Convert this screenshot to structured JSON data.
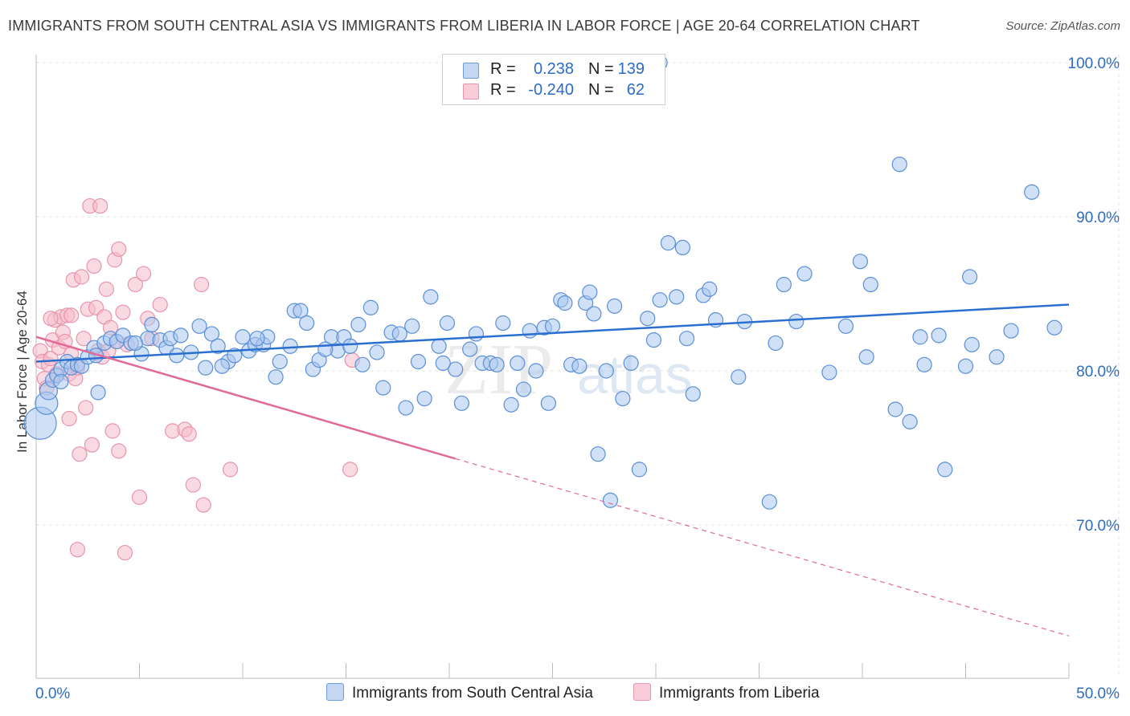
{
  "title": "IMMIGRANTS FROM SOUTH CENTRAL ASIA VS IMMIGRANTS FROM LIBERIA IN LABOR FORCE | AGE 20-64 CORRELATION CHART",
  "source": "Source: ZipAtlas.com",
  "watermark": "ZIPatlas",
  "legend": {
    "rows": [
      {
        "r_label": "R =",
        "r_value": "0.238",
        "n_label": "N =",
        "n_value": "139",
        "color": "#a9c7ef"
      },
      {
        "r_label": "R =",
        "r_value": "-0.240",
        "n_label": "N =",
        "n_value": "62",
        "color": "#f6bccb"
      }
    ]
  },
  "bottom_legend": {
    "blue": "Immigrants from South Central Asia",
    "pink": "Immigrants from Liberia"
  },
  "colors": {
    "blue_fill": "#a9c7ef",
    "blue_stroke": "#5b8fd6",
    "blue_line": "#2a6fcf",
    "pink_fill": "#f6bccb",
    "pink_stroke": "#e695ad",
    "pink_line": "#e06a98",
    "tick_label": "#2b6cc4"
  },
  "chart_data": {
    "type": "scatter",
    "title": "IMMIGRANTS FROM SOUTH CENTRAL ASIA VS IMMIGRANTS FROM LIBERIA IN LABOR FORCE | AGE 20-64 CORRELATION CHART",
    "xlabel": "",
    "ylabel": "In Labor Force | Age 20-64",
    "xlim": [
      0,
      50
    ],
    "ylim": [
      61.0,
      102.0
    ],
    "x_tick_labels": [
      "0.0%",
      "50.0%"
    ],
    "y_ticks": [
      70,
      80,
      90,
      100
    ],
    "y_tick_labels": [
      "70.0%",
      "80.0%",
      "90.0%",
      "100.0%"
    ],
    "grid": true,
    "legend_position": "top-center",
    "series": [
      {
        "name": "Immigrants from South Central Asia",
        "R": 0.238,
        "N": 139,
        "trend": {
          "x": [
            0,
            50
          ],
          "y": [
            80.6,
            84.3
          ],
          "style": "solid"
        },
        "points": [
          [
            0.2,
            76.6
          ],
          [
            0.5,
            77.9
          ],
          [
            0.6,
            78.7
          ],
          [
            0.8,
            79.4
          ],
          [
            1.0,
            79.7
          ],
          [
            1.2,
            80.1
          ],
          [
            1.5,
            80.6
          ],
          [
            1.7,
            80.2
          ],
          [
            2.0,
            80.4
          ],
          [
            2.2,
            80.3
          ],
          [
            2.5,
            80.9
          ],
          [
            2.8,
            81.5
          ],
          [
            3.0,
            78.6
          ],
          [
            3.3,
            81.8
          ],
          [
            3.6,
            82.1
          ],
          [
            3.9,
            81.9
          ],
          [
            4.2,
            82.3
          ],
          [
            4.6,
            81.8
          ],
          [
            5.1,
            81.1
          ],
          [
            5.4,
            82.1
          ],
          [
            5.6,
            83.0
          ],
          [
            6.0,
            82.0
          ],
          [
            6.3,
            81.5
          ],
          [
            6.5,
            82.1
          ],
          [
            7.0,
            82.3
          ],
          [
            7.5,
            81.2
          ],
          [
            7.9,
            82.9
          ],
          [
            8.2,
            80.2
          ],
          [
            8.5,
            82.4
          ],
          [
            8.8,
            81.6
          ],
          [
            9.3,
            80.6
          ],
          [
            9.6,
            81.0
          ],
          [
            10.0,
            82.2
          ],
          [
            10.3,
            81.3
          ],
          [
            10.6,
            81.7
          ],
          [
            11.0,
            81.7
          ],
          [
            11.2,
            82.2
          ],
          [
            11.6,
            79.6
          ],
          [
            11.8,
            80.6
          ],
          [
            12.3,
            81.6
          ],
          [
            12.5,
            83.9
          ],
          [
            12.8,
            83.9
          ],
          [
            13.1,
            83.1
          ],
          [
            13.4,
            80.1
          ],
          [
            13.7,
            80.7
          ],
          [
            14.3,
            82.2
          ],
          [
            14.6,
            81.3
          ],
          [
            14.9,
            82.2
          ],
          [
            15.2,
            81.6
          ],
          [
            15.6,
            83.0
          ],
          [
            15.8,
            80.4
          ],
          [
            16.2,
            84.1
          ],
          [
            16.5,
            81.2
          ],
          [
            16.8,
            78.9
          ],
          [
            17.2,
            82.5
          ],
          [
            17.6,
            82.4
          ],
          [
            17.9,
            77.6
          ],
          [
            18.2,
            82.9
          ],
          [
            18.5,
            80.6
          ],
          [
            18.8,
            78.2
          ],
          [
            19.1,
            84.8
          ],
          [
            19.5,
            81.6
          ],
          [
            19.9,
            83.1
          ],
          [
            20.3,
            80.1
          ],
          [
            20.6,
            77.9
          ],
          [
            21.0,
            81.4
          ],
          [
            21.3,
            82.4
          ],
          [
            21.6,
            80.5
          ],
          [
            22.0,
            80.5
          ],
          [
            22.3,
            80.4
          ],
          [
            22.6,
            83.1
          ],
          [
            23.0,
            77.8
          ],
          [
            23.3,
            80.5
          ],
          [
            23.6,
            78.8
          ],
          [
            23.9,
            82.6
          ],
          [
            24.2,
            80.0
          ],
          [
            24.6,
            82.8
          ],
          [
            24.8,
            77.9
          ],
          [
            25.0,
            82.9
          ],
          [
            25.4,
            84.6
          ],
          [
            25.6,
            84.4
          ],
          [
            25.9,
            80.4
          ],
          [
            26.3,
            80.3
          ],
          [
            26.6,
            84.4
          ],
          [
            26.8,
            85.1
          ],
          [
            27.0,
            83.7
          ],
          [
            27.2,
            74.6
          ],
          [
            27.6,
            80.0
          ],
          [
            27.8,
            71.6
          ],
          [
            28.0,
            84.2
          ],
          [
            28.4,
            78.2
          ],
          [
            28.8,
            80.5
          ],
          [
            29.2,
            73.6
          ],
          [
            29.6,
            83.4
          ],
          [
            29.9,
            82.0
          ],
          [
            30.2,
            84.6
          ],
          [
            30.6,
            88.3
          ],
          [
            31.0,
            84.8
          ],
          [
            31.3,
            88.0
          ],
          [
            31.5,
            82.1
          ],
          [
            31.8,
            78.5
          ],
          [
            32.3,
            84.9
          ],
          [
            32.6,
            85.3
          ],
          [
            32.9,
            83.3
          ],
          [
            34.0,
            79.6
          ],
          [
            34.3,
            83.2
          ],
          [
            35.5,
            71.5
          ],
          [
            35.8,
            81.8
          ],
          [
            36.2,
            85.6
          ],
          [
            36.8,
            83.2
          ],
          [
            37.2,
            86.3
          ],
          [
            38.4,
            79.9
          ],
          [
            39.2,
            82.9
          ],
          [
            39.9,
            87.1
          ],
          [
            40.2,
            80.9
          ],
          [
            40.4,
            85.6
          ],
          [
            41.6,
            77.5
          ],
          [
            41.8,
            93.4
          ],
          [
            42.3,
            76.7
          ],
          [
            42.8,
            82.2
          ],
          [
            43.0,
            80.4
          ],
          [
            43.7,
            82.3
          ],
          [
            44.0,
            73.6
          ],
          [
            45.2,
            86.1
          ],
          [
            45.0,
            80.3
          ],
          [
            45.3,
            81.7
          ],
          [
            46.5,
            80.9
          ],
          [
            47.2,
            82.6
          ],
          [
            48.2,
            91.6
          ],
          [
            49.3,
            82.8
          ],
          [
            30.2,
            100.0
          ],
          [
            1.2,
            79.3
          ],
          [
            2.9,
            81.0
          ],
          [
            4.8,
            81.8
          ],
          [
            6.8,
            81.0
          ],
          [
            9.0,
            80.3
          ],
          [
            10.7,
            82.1
          ],
          [
            14.0,
            81.4
          ],
          [
            19.7,
            80.5
          ]
        ]
      },
      {
        "name": "Immigrants from Liberia",
        "R": -0.24,
        "N": 62,
        "trend": {
          "x": [
            0,
            20.3
          ],
          "y": [
            82.2,
            74.3
          ],
          "style": "solid",
          "extension": {
            "x": [
              20.3,
              50
            ],
            "y": [
              74.3,
              62.8
            ],
            "style": "dashed"
          }
        },
        "points": [
          [
            0.2,
            81.3
          ],
          [
            0.3,
            80.6
          ],
          [
            0.4,
            79.5
          ],
          [
            0.5,
            78.9
          ],
          [
            0.6,
            80.4
          ],
          [
            0.7,
            80.8
          ],
          [
            0.8,
            82.0
          ],
          [
            0.9,
            83.3
          ],
          [
            1.0,
            79.8
          ],
          [
            1.1,
            81.5
          ],
          [
            1.2,
            83.5
          ],
          [
            1.3,
            82.5
          ],
          [
            1.4,
            81.9
          ],
          [
            1.5,
            83.6
          ],
          [
            1.6,
            79.8
          ],
          [
            1.6,
            76.9
          ],
          [
            1.7,
            83.6
          ],
          [
            1.7,
            81.1
          ],
          [
            1.8,
            85.9
          ],
          [
            1.9,
            79.5
          ],
          [
            2.0,
            80.2
          ],
          [
            2.1,
            74.6
          ],
          [
            2.2,
            86.1
          ],
          [
            2.3,
            82.1
          ],
          [
            2.4,
            77.6
          ],
          [
            2.5,
            84.0
          ],
          [
            2.6,
            90.7
          ],
          [
            2.7,
            75.2
          ],
          [
            2.8,
            86.8
          ],
          [
            2.9,
            84.1
          ],
          [
            3.0,
            81.3
          ],
          [
            3.1,
            90.7
          ],
          [
            3.2,
            80.9
          ],
          [
            3.3,
            83.5
          ],
          [
            3.4,
            85.3
          ],
          [
            3.5,
            81.3
          ],
          [
            3.6,
            82.8
          ],
          [
            3.7,
            76.1
          ],
          [
            3.8,
            87.2
          ],
          [
            3.9,
            81.9
          ],
          [
            4.0,
            74.8
          ],
          [
            4.0,
            87.9
          ],
          [
            4.2,
            83.8
          ],
          [
            4.4,
            81.7
          ],
          [
            4.8,
            85.6
          ],
          [
            5.0,
            71.8
          ],
          [
            5.2,
            86.3
          ],
          [
            5.4,
            83.4
          ],
          [
            5.6,
            82.1
          ],
          [
            6.0,
            84.3
          ],
          [
            6.6,
            76.1
          ],
          [
            7.2,
            76.2
          ],
          [
            7.4,
            75.9
          ],
          [
            7.6,
            72.6
          ],
          [
            8.0,
            85.6
          ],
          [
            8.1,
            71.3
          ],
          [
            9.4,
            73.6
          ],
          [
            2.0,
            68.4
          ],
          [
            4.3,
            68.2
          ],
          [
            0.7,
            83.4
          ],
          [
            15.2,
            73.6
          ],
          [
            15.3,
            80.7
          ]
        ]
      }
    ]
  }
}
